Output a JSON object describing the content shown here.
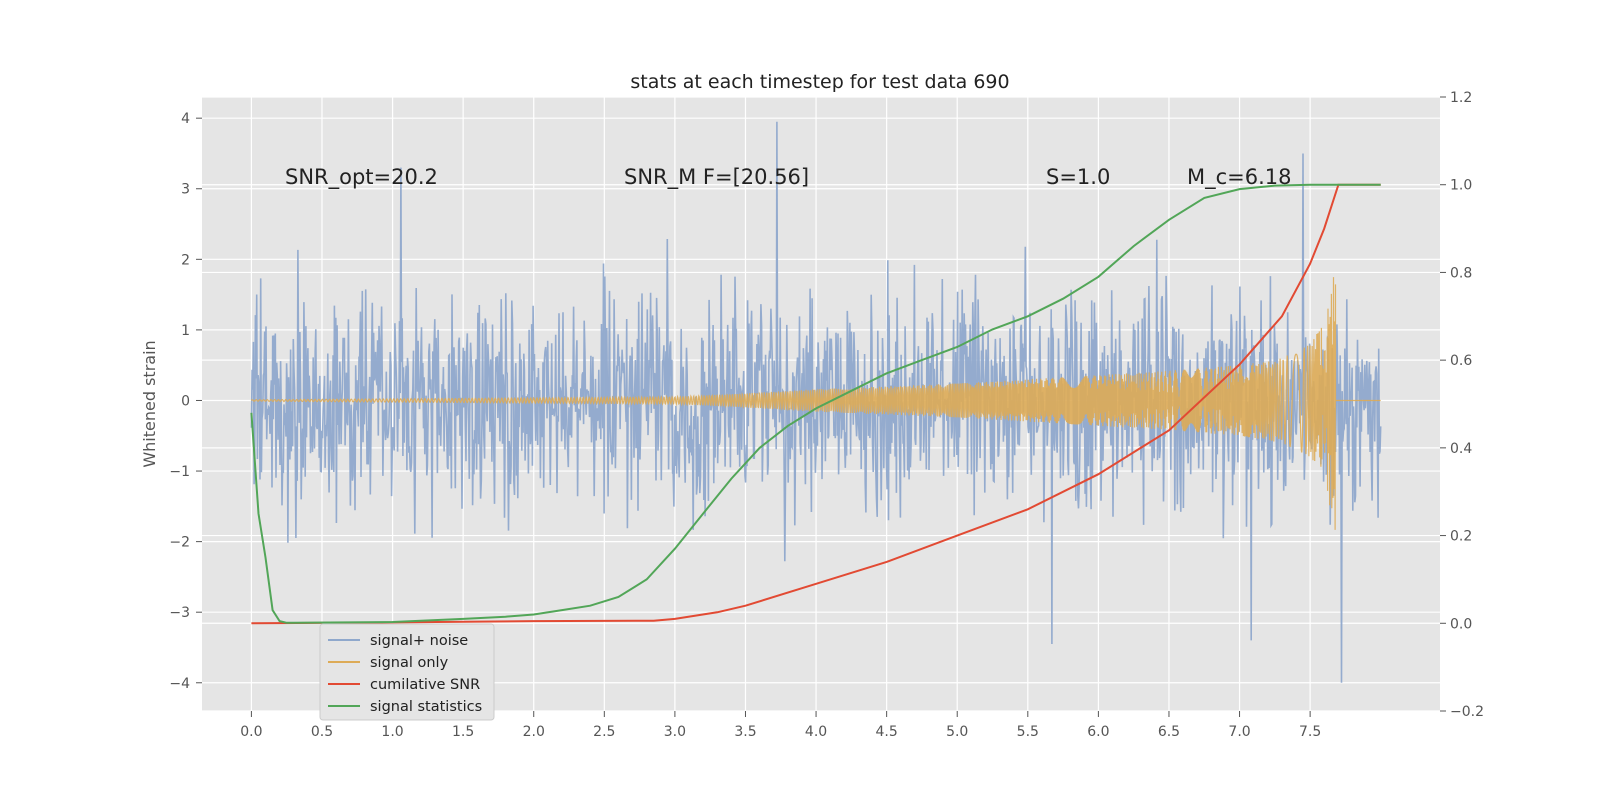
{
  "chart_data": {
    "type": "line",
    "title": "stats at each timestep for test data 690",
    "ylabel": "Whitened strain",
    "ylabel_right": "",
    "xlim": [
      -0.35,
      8.42
    ],
    "ylim": [
      -4.4,
      4.3
    ],
    "ylim_right": [
      -0.2,
      1.2
    ],
    "x_ticks": [
      "0.0",
      "0.5",
      "1.0",
      "1.5",
      "2.0",
      "2.5",
      "3.0",
      "3.5",
      "4.0",
      "4.5",
      "5.0",
      "5.5",
      "6.0",
      "6.5",
      "7.0",
      "7.5"
    ],
    "y_ticks": [
      "4",
      "3",
      "2",
      "1",
      "0",
      "−1",
      "−2",
      "−3",
      "−4"
    ],
    "y_ticks_right": [
      "1.2",
      "1.0",
      "0.8",
      "0.6",
      "0.4",
      "0.2",
      "0.0",
      "−0.2"
    ],
    "grid": true,
    "background": "#e5e5e5",
    "annotations": [
      {
        "text": "SNR_opt=20.2",
        "x": 0.2,
        "y": 3.1
      },
      {
        "text": "SNR_M F=[20.56]",
        "x": 2.6,
        "y": 3.1
      },
      {
        "text": "S=1.0",
        "x": 5.6,
        "y": 3.1
      },
      {
        "text": "M_c=6.18",
        "x": 6.6,
        "y": 3.1
      }
    ],
    "series": [
      {
        "name": "signal+ noise",
        "axis": "left",
        "color": "#8fa8cc",
        "description": "whitened noisy strain, approx. amplitude 2.4, x from 0 to 8",
        "x_range": [
          0.0,
          8.0
        ],
        "amplitude": 2.4,
        "extreme_points": [
          [
            1.06,
            3.3
          ],
          [
            3.72,
            3.95
          ],
          [
            5.67,
            -3.45
          ],
          [
            7.45,
            3.5
          ],
          [
            7.72,
            -4.0
          ],
          [
            7.08,
            -3.4
          ]
        ]
      },
      {
        "name": "signal only",
        "axis": "left",
        "color": "#ddab57",
        "description": "chirp signal, amplitude grows from ~0 to ~1.9, ending at x=7.68",
        "x": [
          0.0,
          3.0,
          3.5,
          4.0,
          4.5,
          5.0,
          5.5,
          6.0,
          6.5,
          7.0,
          7.3,
          7.5,
          7.6,
          7.65,
          7.68
        ],
        "envelope": [
          0.01,
          0.05,
          0.1,
          0.16,
          0.2,
          0.24,
          0.3,
          0.36,
          0.42,
          0.5,
          0.6,
          0.8,
          1.1,
          1.6,
          1.9
        ]
      },
      {
        "name": "cumilative SNR",
        "axis": "right",
        "color": "#e24a33",
        "x": [
          0.0,
          1.0,
          2.0,
          2.85,
          3.0,
          3.3,
          3.5,
          4.0,
          4.5,
          5.0,
          5.5,
          6.0,
          6.5,
          7.0,
          7.3,
          7.5,
          7.6,
          7.7,
          8.0
        ],
        "values": [
          0.0,
          0.002,
          0.005,
          0.006,
          0.01,
          0.025,
          0.04,
          0.09,
          0.14,
          0.2,
          0.26,
          0.34,
          0.44,
          0.59,
          0.7,
          0.82,
          0.9,
          1.0,
          1.0
        ]
      },
      {
        "name": "signal statistics",
        "axis": "right",
        "color": "#52a658",
        "x": [
          0.0,
          0.05,
          0.1,
          0.15,
          0.2,
          0.25,
          0.3,
          1.0,
          1.5,
          1.8,
          2.0,
          2.2,
          2.4,
          2.6,
          2.8,
          3.0,
          3.2,
          3.4,
          3.6,
          3.8,
          4.0,
          4.25,
          4.5,
          4.75,
          5.0,
          5.25,
          5.5,
          5.75,
          6.0,
          6.25,
          6.5,
          6.75,
          7.0,
          7.25,
          7.5,
          7.75,
          8.0
        ],
        "values": [
          0.48,
          0.25,
          0.15,
          0.03,
          0.005,
          0.001,
          0.001,
          0.003,
          0.01,
          0.015,
          0.02,
          0.03,
          0.04,
          0.06,
          0.1,
          0.17,
          0.25,
          0.33,
          0.4,
          0.45,
          0.49,
          0.53,
          0.57,
          0.6,
          0.63,
          0.67,
          0.7,
          0.74,
          0.79,
          0.86,
          0.92,
          0.97,
          0.99,
          0.998,
          1.0,
          1.0,
          1.0
        ]
      }
    ],
    "legend": {
      "placement": "lower-left",
      "entries": [
        "signal+ noise",
        "signal only",
        "cumilative SNR",
        "signal statistics"
      ]
    }
  }
}
